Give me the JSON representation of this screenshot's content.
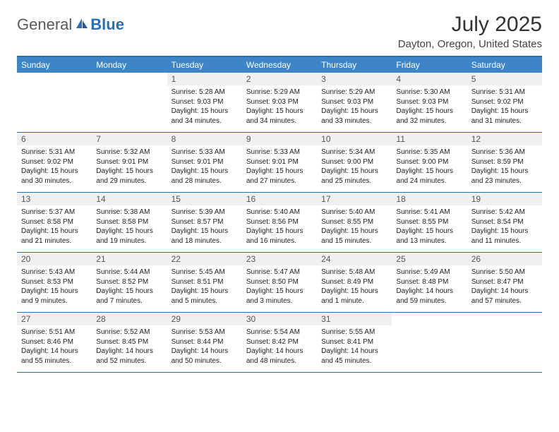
{
  "brand": {
    "part1": "General",
    "part2": "Blue"
  },
  "title": "July 2025",
  "location": "Dayton, Oregon, United States",
  "colors": {
    "header_bg": "#3d85c6",
    "header_text": "#ffffff",
    "border": "#2b6fb3",
    "daynum_bg": "#eef0f2",
    "daynum_text": "#555555",
    "body_text": "#222222",
    "logo_gray": "#5a5a5a",
    "logo_blue": "#2b6fb3"
  },
  "day_names": [
    "Sunday",
    "Monday",
    "Tuesday",
    "Wednesday",
    "Thursday",
    "Friday",
    "Saturday"
  ],
  "weeks": [
    [
      {
        "n": "",
        "sunrise": "",
        "sunset": "",
        "daylight": ""
      },
      {
        "n": "",
        "sunrise": "",
        "sunset": "",
        "daylight": ""
      },
      {
        "n": "1",
        "sunrise": "Sunrise: 5:28 AM",
        "sunset": "Sunset: 9:03 PM",
        "daylight": "Daylight: 15 hours and 34 minutes."
      },
      {
        "n": "2",
        "sunrise": "Sunrise: 5:29 AM",
        "sunset": "Sunset: 9:03 PM",
        "daylight": "Daylight: 15 hours and 34 minutes."
      },
      {
        "n": "3",
        "sunrise": "Sunrise: 5:29 AM",
        "sunset": "Sunset: 9:03 PM",
        "daylight": "Daylight: 15 hours and 33 minutes."
      },
      {
        "n": "4",
        "sunrise": "Sunrise: 5:30 AM",
        "sunset": "Sunset: 9:03 PM",
        "daylight": "Daylight: 15 hours and 32 minutes."
      },
      {
        "n": "5",
        "sunrise": "Sunrise: 5:31 AM",
        "sunset": "Sunset: 9:02 PM",
        "daylight": "Daylight: 15 hours and 31 minutes."
      }
    ],
    [
      {
        "n": "6",
        "sunrise": "Sunrise: 5:31 AM",
        "sunset": "Sunset: 9:02 PM",
        "daylight": "Daylight: 15 hours and 30 minutes."
      },
      {
        "n": "7",
        "sunrise": "Sunrise: 5:32 AM",
        "sunset": "Sunset: 9:01 PM",
        "daylight": "Daylight: 15 hours and 29 minutes."
      },
      {
        "n": "8",
        "sunrise": "Sunrise: 5:33 AM",
        "sunset": "Sunset: 9:01 PM",
        "daylight": "Daylight: 15 hours and 28 minutes."
      },
      {
        "n": "9",
        "sunrise": "Sunrise: 5:33 AM",
        "sunset": "Sunset: 9:01 PM",
        "daylight": "Daylight: 15 hours and 27 minutes."
      },
      {
        "n": "10",
        "sunrise": "Sunrise: 5:34 AM",
        "sunset": "Sunset: 9:00 PM",
        "daylight": "Daylight: 15 hours and 25 minutes."
      },
      {
        "n": "11",
        "sunrise": "Sunrise: 5:35 AM",
        "sunset": "Sunset: 9:00 PM",
        "daylight": "Daylight: 15 hours and 24 minutes."
      },
      {
        "n": "12",
        "sunrise": "Sunrise: 5:36 AM",
        "sunset": "Sunset: 8:59 PM",
        "daylight": "Daylight: 15 hours and 23 minutes."
      }
    ],
    [
      {
        "n": "13",
        "sunrise": "Sunrise: 5:37 AM",
        "sunset": "Sunset: 8:58 PM",
        "daylight": "Daylight: 15 hours and 21 minutes."
      },
      {
        "n": "14",
        "sunrise": "Sunrise: 5:38 AM",
        "sunset": "Sunset: 8:58 PM",
        "daylight": "Daylight: 15 hours and 19 minutes."
      },
      {
        "n": "15",
        "sunrise": "Sunrise: 5:39 AM",
        "sunset": "Sunset: 8:57 PM",
        "daylight": "Daylight: 15 hours and 18 minutes."
      },
      {
        "n": "16",
        "sunrise": "Sunrise: 5:40 AM",
        "sunset": "Sunset: 8:56 PM",
        "daylight": "Daylight: 15 hours and 16 minutes."
      },
      {
        "n": "17",
        "sunrise": "Sunrise: 5:40 AM",
        "sunset": "Sunset: 8:55 PM",
        "daylight": "Daylight: 15 hours and 15 minutes."
      },
      {
        "n": "18",
        "sunrise": "Sunrise: 5:41 AM",
        "sunset": "Sunset: 8:55 PM",
        "daylight": "Daylight: 15 hours and 13 minutes."
      },
      {
        "n": "19",
        "sunrise": "Sunrise: 5:42 AM",
        "sunset": "Sunset: 8:54 PM",
        "daylight": "Daylight: 15 hours and 11 minutes."
      }
    ],
    [
      {
        "n": "20",
        "sunrise": "Sunrise: 5:43 AM",
        "sunset": "Sunset: 8:53 PM",
        "daylight": "Daylight: 15 hours and 9 minutes."
      },
      {
        "n": "21",
        "sunrise": "Sunrise: 5:44 AM",
        "sunset": "Sunset: 8:52 PM",
        "daylight": "Daylight: 15 hours and 7 minutes."
      },
      {
        "n": "22",
        "sunrise": "Sunrise: 5:45 AM",
        "sunset": "Sunset: 8:51 PM",
        "daylight": "Daylight: 15 hours and 5 minutes."
      },
      {
        "n": "23",
        "sunrise": "Sunrise: 5:47 AM",
        "sunset": "Sunset: 8:50 PM",
        "daylight": "Daylight: 15 hours and 3 minutes."
      },
      {
        "n": "24",
        "sunrise": "Sunrise: 5:48 AM",
        "sunset": "Sunset: 8:49 PM",
        "daylight": "Daylight: 15 hours and 1 minute."
      },
      {
        "n": "25",
        "sunrise": "Sunrise: 5:49 AM",
        "sunset": "Sunset: 8:48 PM",
        "daylight": "Daylight: 14 hours and 59 minutes."
      },
      {
        "n": "26",
        "sunrise": "Sunrise: 5:50 AM",
        "sunset": "Sunset: 8:47 PM",
        "daylight": "Daylight: 14 hours and 57 minutes."
      }
    ],
    [
      {
        "n": "27",
        "sunrise": "Sunrise: 5:51 AM",
        "sunset": "Sunset: 8:46 PM",
        "daylight": "Daylight: 14 hours and 55 minutes."
      },
      {
        "n": "28",
        "sunrise": "Sunrise: 5:52 AM",
        "sunset": "Sunset: 8:45 PM",
        "daylight": "Daylight: 14 hours and 52 minutes."
      },
      {
        "n": "29",
        "sunrise": "Sunrise: 5:53 AM",
        "sunset": "Sunset: 8:44 PM",
        "daylight": "Daylight: 14 hours and 50 minutes."
      },
      {
        "n": "30",
        "sunrise": "Sunrise: 5:54 AM",
        "sunset": "Sunset: 8:42 PM",
        "daylight": "Daylight: 14 hours and 48 minutes."
      },
      {
        "n": "31",
        "sunrise": "Sunrise: 5:55 AM",
        "sunset": "Sunset: 8:41 PM",
        "daylight": "Daylight: 14 hours and 45 minutes."
      },
      {
        "n": "",
        "sunrise": "",
        "sunset": "",
        "daylight": ""
      },
      {
        "n": "",
        "sunrise": "",
        "sunset": "",
        "daylight": ""
      }
    ]
  ]
}
